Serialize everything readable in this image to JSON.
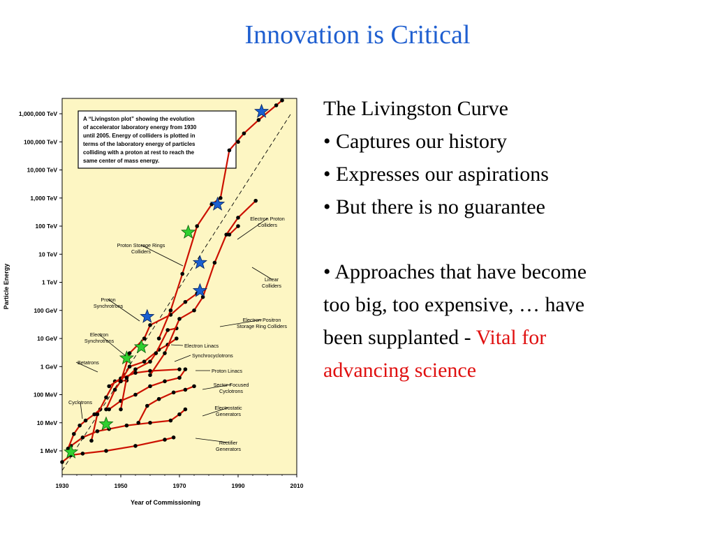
{
  "slide": {
    "title": "Innovation is Critical",
    "bullets": {
      "heading": "The Livingston Curve",
      "b1": "• Captures our history",
      "b2": "• Expresses our aspirations",
      "b3": "• But there is no guarantee",
      "b4_l1": "• Approaches that have become",
      "b4_l2": "too big, too expensive, … have",
      "b4_l3": "been supplanted - ",
      "b4_red1": "Vital for",
      "b4_red2": "advancing science"
    },
    "colors": {
      "title": "#1f5fd0",
      "highlight": "#e01010",
      "plot_bg": "#fdf6c3",
      "curve": "#cc1100",
      "star_blue": "#1a5fd0",
      "star_green": "#2fcf2f"
    }
  },
  "chart_data": {
    "type": "line",
    "xlabel": "Year of Commissioning",
    "ylabel": "Particle Energy",
    "xlim": [
      1930,
      2010
    ],
    "x_ticks": [
      "1930",
      "1950",
      "1970",
      "1990",
      "2010"
    ],
    "y_ticks": [
      "1 MeV",
      "10 MeV",
      "100 MeV",
      "1 GeV",
      "10 GeV",
      "100 GeV",
      "1 TeV",
      "10 TeV",
      "100 TeV",
      "1,000 TeV",
      "10,000 TeV",
      "100,000 TeV",
      "1,000,000 TeV"
    ],
    "note": "A “Livingston plot” showing the evolution of accelerator laboratory energy from 1930 until 2005. Energy of colliders is plotted in terms of the laboratory energy of particles colliding with a proton at rest to reach the same center of mass energy.",
    "note_lines": [
      "A “Livingston plot” showing the evolution",
      "of accelerator laboratory energy from 1930",
      "until 2005. Energy of colliders is plotted in",
      "terms of the laboratory energy of particles",
      "colliding with a proton at rest to reach the",
      "same center of mass energy."
    ],
    "labels": {
      "electron_proton": [
        "Electron Proton",
        "Colliders"
      ],
      "proton_storage": [
        "Proton Storage Rings",
        "Colliders"
      ],
      "linear": [
        "Linear",
        "Colliders"
      ],
      "proton_synch": [
        "Proton",
        "Synchrotrons"
      ],
      "electron_positron": [
        "Electron Positron",
        "Storage Ring Colliders"
      ],
      "electron_synch": [
        "Electron",
        "Synchrotrons"
      ],
      "electron_linacs": [
        "Electron Linacs"
      ],
      "synchrocyclotrons": [
        "Synchrocyclotrons"
      ],
      "betatrons": [
        "Betatrons"
      ],
      "proton_linacs": [
        "Proton Linacs"
      ],
      "sector_focused": [
        "Sector-Focused",
        "Cyclotrons"
      ],
      "cyclotrons": [
        "Cyclotrons"
      ],
      "electrostatic": [
        "Electrostatic",
        "Generators"
      ],
      "rectifier": [
        "Rectifier",
        "Generators"
      ]
    },
    "series": [
      {
        "name": "Rectifier Generators",
        "points": [
          [
            1930,
            0.4
          ],
          [
            1933,
            0.7
          ],
          [
            1937,
            0.8
          ],
          [
            1945,
            1.0
          ],
          [
            1955,
            1.5
          ],
          [
            1965,
            2.5
          ],
          [
            1968,
            3.0
          ]
        ]
      },
      {
        "name": "Electrostatic Generators",
        "points": [
          [
            1933,
            1.5
          ],
          [
            1937,
            3
          ],
          [
            1942,
            5
          ],
          [
            1946,
            6
          ],
          [
            1952,
            8
          ],
          [
            1960,
            10
          ],
          [
            1967,
            12
          ],
          [
            1970,
            20
          ],
          [
            1972,
            30
          ]
        ]
      },
      {
        "name": "Cyclotrons",
        "points": [
          [
            1932,
            1.2
          ],
          [
            1934,
            4
          ],
          [
            1936,
            8
          ],
          [
            1938,
            12
          ],
          [
            1941,
            20
          ],
          [
            1943,
            30
          ]
        ]
      },
      {
        "name": "Betatrons",
        "points": [
          [
            1940,
            2.3
          ],
          [
            1942,
            20
          ],
          [
            1945,
            80
          ],
          [
            1948,
            300
          ],
          [
            1952,
            320
          ]
        ]
      },
      {
        "name": "Sector-Focused Cyclotrons",
        "points": [
          [
            1956,
            10
          ],
          [
            1959,
            40
          ],
          [
            1963,
            70
          ],
          [
            1968,
            120
          ],
          [
            1972,
            150
          ],
          [
            1975,
            200
          ]
        ]
      },
      {
        "name": "Synchrocyclotrons",
        "points": [
          [
            1946,
            200
          ],
          [
            1950,
            380
          ],
          [
            1955,
            600
          ],
          [
            1960,
            700
          ],
          [
            1970,
            800
          ]
        ]
      },
      {
        "name": "Proton Linacs",
        "points": [
          [
            1946,
            30
          ],
          [
            1950,
            60
          ],
          [
            1955,
            100
          ],
          [
            1960,
            200
          ],
          [
            1965,
            300
          ],
          [
            1970,
            400
          ],
          [
            1972,
            800
          ]
        ]
      },
      {
        "name": "Electron Synchrotrons",
        "points": [
          [
            1945,
            30
          ],
          [
            1948,
            150
          ],
          [
            1950,
            300
          ],
          [
            1953,
            1000
          ],
          [
            1958,
            1500
          ],
          [
            1963,
            4000
          ],
          [
            1966,
            6000
          ],
          [
            1969,
            10000
          ]
        ]
      },
      {
        "name": "Electron Linacs",
        "points": [
          [
            1950,
            30
          ],
          [
            1952,
            400
          ],
          [
            1955,
            800
          ],
          [
            1960,
            1500
          ],
          [
            1962,
            3000
          ],
          [
            1966,
            20000
          ],
          [
            1969,
            23000
          ]
        ]
      },
      {
        "name": "Proton Synchrotrons",
        "points": [
          [
            1950,
            300
          ],
          [
            1953,
            3000
          ],
          [
            1958,
            10000
          ],
          [
            1960,
            30000
          ],
          [
            1967,
            70000
          ],
          [
            1972,
            200000
          ],
          [
            1976,
            400000
          ]
        ]
      },
      {
        "name": "Electron Positron Storage Ring Colliders",
        "points": [
          [
            1960,
            500
          ],
          [
            1965,
            3000
          ],
          [
            1970,
            50000
          ],
          [
            1975,
            100000
          ],
          [
            1978,
            300000
          ],
          [
            1982,
            5000000
          ],
          [
            1986,
            50000000
          ],
          [
            1990,
            200000000
          ],
          [
            1996,
            800000000
          ]
        ]
      },
      {
        "name": "Linear Colliders",
        "points": [
          [
            1987,
            50000000
          ],
          [
            1990,
            100000000
          ]
        ]
      },
      {
        "name": "Proton Storage Rings Colliders",
        "points": [
          [
            1963,
            10000
          ],
          [
            1967,
            100000
          ],
          [
            1971,
            2000000
          ],
          [
            1976,
            100000000
          ],
          [
            1981,
            600000000
          ],
          [
            1984,
            1000000000
          ],
          [
            1987,
            50000000000
          ],
          [
            1992,
            200000000000
          ],
          [
            1997,
            600000000000
          ],
          [
            2003,
            2000000000000
          ],
          [
            2005,
            3000000000000
          ]
        ]
      },
      {
        "name": "Electron Proton Colliders",
        "points": [
          [
            1990,
            100000000000
          ]
        ]
      }
    ],
    "blue_stars": [
      [
        1959,
        60000
      ],
      [
        1977,
        500000
      ],
      [
        1977,
        5000000
      ],
      [
        1983,
        600000000
      ],
      [
        1998,
        1200000000000
      ]
    ],
    "green_stars": [
      [
        1933,
        0.9
      ],
      [
        1945,
        9
      ],
      [
        1952,
        2000
      ],
      [
        1957,
        5000
      ],
      [
        1973,
        60000000
      ]
    ]
  }
}
